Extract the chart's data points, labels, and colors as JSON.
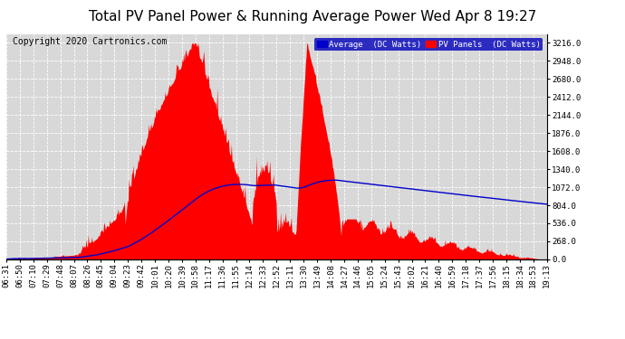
{
  "title": "Total PV Panel Power & Running Average Power Wed Apr 8 19:27",
  "copyright": "Copyright 2020 Cartronics.com",
  "ylabel_right_ticks": [
    0.0,
    268.0,
    536.0,
    804.0,
    1072.0,
    1340.0,
    1608.0,
    1876.0,
    2144.0,
    2412.0,
    2680.0,
    2948.0,
    3216.0
  ],
  "ylim": [
    0,
    3350
  ],
  "x_tick_labels": [
    "06:31",
    "06:50",
    "07:10",
    "07:29",
    "07:48",
    "08:07",
    "08:26",
    "08:45",
    "09:04",
    "09:23",
    "09:42",
    "10:01",
    "10:20",
    "10:39",
    "10:58",
    "11:17",
    "11:36",
    "11:55",
    "12:14",
    "12:33",
    "12:52",
    "13:11",
    "13:30",
    "13:49",
    "14:08",
    "14:27",
    "14:46",
    "15:05",
    "15:24",
    "15:43",
    "16:02",
    "16:21",
    "16:40",
    "16:59",
    "17:18",
    "17:37",
    "17:56",
    "18:15",
    "18:34",
    "18:53",
    "19:13"
  ],
  "legend_avg_label": "Average  (DC Watts)",
  "legend_pv_label": "PV Panels  (DC Watts)",
  "bg_color": "#ffffff",
  "plot_bg_color": "#d8d8d8",
  "grid_color": "#ffffff",
  "bar_color": "#ff0000",
  "avg_line_color": "#0000cc",
  "title_fontsize": 11,
  "axis_fontsize": 6.5,
  "copyright_fontsize": 7
}
